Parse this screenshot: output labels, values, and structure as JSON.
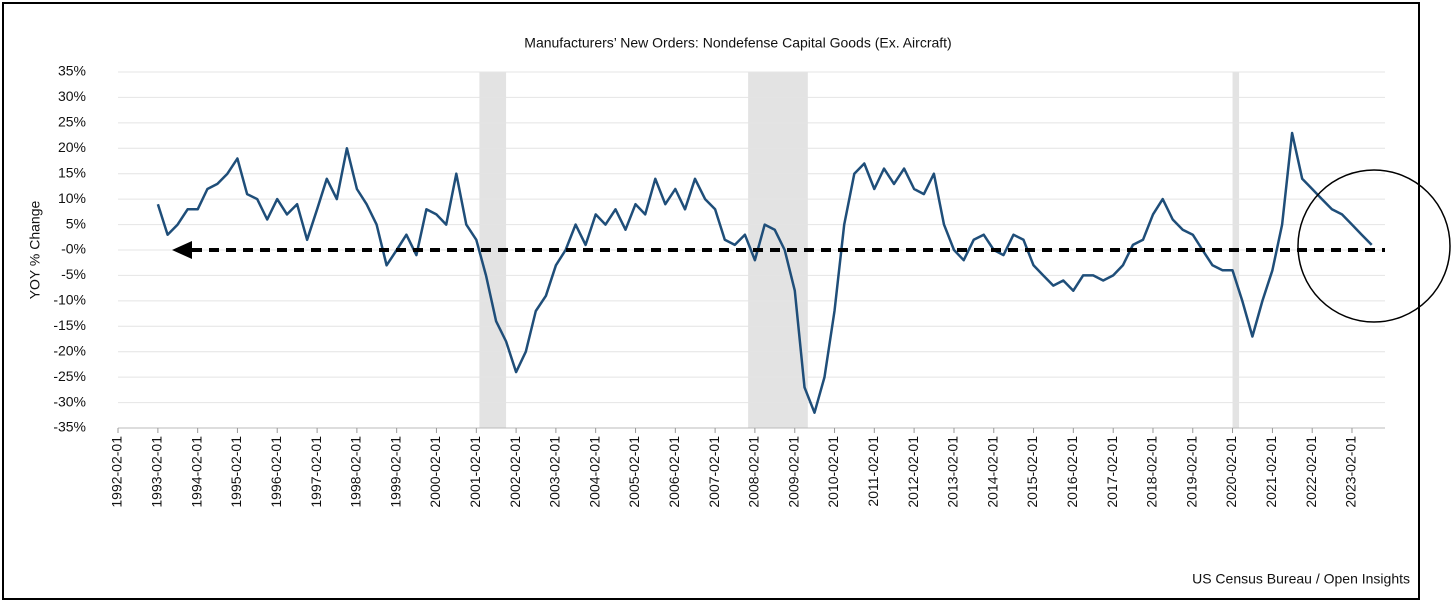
{
  "chart_data": {
    "type": "line",
    "title": "Manufacturers’ New Orders: Nondefense Capital Goods (Ex. Aircraft)",
    "ylabel": "YOY % Change",
    "source": "US Census Bureau / Open Insights",
    "xlim": [
      "1992-02-01",
      "2023-12-01"
    ],
    "xticks": [
      "1992-02-01",
      "1993-02-01",
      "1994-02-01",
      "1995-02-01",
      "1996-02-01",
      "1997-02-01",
      "1998-02-01",
      "1999-02-01",
      "2000-02-01",
      "2001-02-01",
      "2002-02-01",
      "2003-02-01",
      "2004-02-01",
      "2005-02-01",
      "2006-02-01",
      "2007-02-01",
      "2008-02-01",
      "2009-02-01",
      "2010-02-01",
      "2011-02-01",
      "2012-02-01",
      "2013-02-01",
      "2014-02-01",
      "2015-02-01",
      "2016-02-01",
      "2017-02-01",
      "2018-02-01",
      "2019-02-01",
      "2020-02-01",
      "2021-02-01",
      "2022-02-01",
      "2023-02-01"
    ],
    "ylim": [
      -35,
      35
    ],
    "yticks": [
      {
        "value": -35,
        "label": "-35%"
      },
      {
        "value": -30,
        "label": "-30%"
      },
      {
        "value": -25,
        "label": "-25%"
      },
      {
        "value": -20,
        "label": "-20%"
      },
      {
        "value": -15,
        "label": "-15%"
      },
      {
        "value": -10,
        "label": "-10%"
      },
      {
        "value": -5,
        "label": "-5%"
      },
      {
        "value": 0,
        "label": "-0%"
      },
      {
        "value": 5,
        "label": "5%"
      },
      {
        "value": 10,
        "label": "10%"
      },
      {
        "value": 15,
        "label": "15%"
      },
      {
        "value": 20,
        "label": "20%"
      },
      {
        "value": 25,
        "label": "25%"
      },
      {
        "value": 30,
        "label": "30%"
      },
      {
        "value": 35,
        "label": "35%"
      }
    ],
    "grid": true,
    "reference_line": 0,
    "recessions": [
      {
        "start": "2001-03-01",
        "end": "2001-11-01"
      },
      {
        "start": "2007-12-01",
        "end": "2009-06-01"
      },
      {
        "start": "2020-02-01",
        "end": "2020-04-01"
      }
    ],
    "x": [
      "1993-02-01",
      "1993-05-01",
      "1993-08-01",
      "1993-11-01",
      "1994-02-01",
      "1994-05-01",
      "1994-08-01",
      "1994-11-01",
      "1995-02-01",
      "1995-05-01",
      "1995-08-01",
      "1995-11-01",
      "1996-02-01",
      "1996-05-01",
      "1996-08-01",
      "1996-11-01",
      "1997-02-01",
      "1997-05-01",
      "1997-08-01",
      "1997-11-01",
      "1998-02-01",
      "1998-05-01",
      "1998-08-01",
      "1998-11-01",
      "1999-02-01",
      "1999-05-01",
      "1999-08-01",
      "1999-11-01",
      "2000-02-01",
      "2000-05-01",
      "2000-08-01",
      "2000-11-01",
      "2001-02-01",
      "2001-05-01",
      "2001-08-01",
      "2001-11-01",
      "2002-02-01",
      "2002-05-01",
      "2002-08-01",
      "2002-11-01",
      "2003-02-01",
      "2003-05-01",
      "2003-08-01",
      "2003-11-01",
      "2004-02-01",
      "2004-05-01",
      "2004-08-01",
      "2004-11-01",
      "2005-02-01",
      "2005-05-01",
      "2005-08-01",
      "2005-11-01",
      "2006-02-01",
      "2006-05-01",
      "2006-08-01",
      "2006-11-01",
      "2007-02-01",
      "2007-05-01",
      "2007-08-01",
      "2007-11-01",
      "2008-02-01",
      "2008-05-01",
      "2008-08-01",
      "2008-11-01",
      "2009-02-01",
      "2009-05-01",
      "2009-08-01",
      "2009-11-01",
      "2010-02-01",
      "2010-05-01",
      "2010-08-01",
      "2010-11-01",
      "2011-02-01",
      "2011-05-01",
      "2011-08-01",
      "2011-11-01",
      "2012-02-01",
      "2012-05-01",
      "2012-08-01",
      "2012-11-01",
      "2013-02-01",
      "2013-05-01",
      "2013-08-01",
      "2013-11-01",
      "2014-02-01",
      "2014-05-01",
      "2014-08-01",
      "2014-11-01",
      "2015-02-01",
      "2015-05-01",
      "2015-08-01",
      "2015-11-01",
      "2016-02-01",
      "2016-05-01",
      "2016-08-01",
      "2016-11-01",
      "2017-02-01",
      "2017-05-01",
      "2017-08-01",
      "2017-11-01",
      "2018-02-01",
      "2018-05-01",
      "2018-08-01",
      "2018-11-01",
      "2019-02-01",
      "2019-05-01",
      "2019-08-01",
      "2019-11-01",
      "2020-02-01",
      "2020-05-01",
      "2020-08-01",
      "2020-11-01",
      "2021-02-01",
      "2021-05-01",
      "2021-08-01",
      "2021-11-01",
      "2022-02-01",
      "2022-05-01",
      "2022-08-01",
      "2022-11-01",
      "2023-02-01",
      "2023-05-01",
      "2023-08-01"
    ],
    "series": [
      {
        "name": "YOY % Change",
        "color": "#1f4e79",
        "values": [
          9,
          3,
          5,
          8,
          8,
          12,
          13,
          15,
          18,
          11,
          10,
          6,
          10,
          7,
          9,
          2,
          8,
          14,
          10,
          20,
          12,
          9,
          5,
          -3,
          0,
          3,
          -1,
          8,
          7,
          5,
          15,
          5,
          2,
          -5,
          -14,
          -18,
          -24,
          -20,
          -12,
          -9,
          -3,
          0,
          5,
          1,
          7,
          5,
          8,
          4,
          9,
          7,
          14,
          9,
          12,
          8,
          14,
          10,
          8,
          2,
          1,
          3,
          -2,
          5,
          4,
          0,
          -8,
          -27,
          -32,
          -25,
          -12,
          5,
          15,
          17,
          12,
          16,
          13,
          16,
          12,
          11,
          15,
          5,
          0,
          -2,
          2,
          3,
          0,
          -1,
          3,
          2,
          -3,
          -5,
          -7,
          -6,
          -8,
          -5,
          -5,
          -6,
          -5,
          -3,
          1,
          2,
          7,
          10,
          6,
          4,
          3,
          0,
          -3,
          -4,
          -4,
          -10,
          -17,
          -10,
          -4,
          5,
          23,
          14,
          12,
          10,
          8,
          7,
          5,
          3,
          1
        ]
      }
    ]
  }
}
